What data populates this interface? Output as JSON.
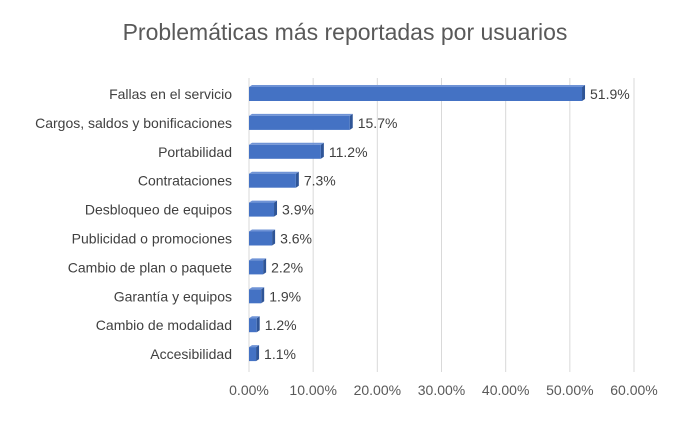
{
  "chart_data": {
    "type": "bar",
    "orientation": "horizontal",
    "title": "Problemáticas más reportadas por usuarios",
    "xlabel": "",
    "ylabel": "",
    "categories": [
      "Fallas en el servicio",
      "Cargos, saldos y bonificaciones",
      "Portabilidad",
      "Contrataciones",
      "Desbloqueo de equipos",
      "Publicidad o promociones",
      "Cambio de plan o paquete",
      "Garantía y equipos",
      "Cambio de modalidad",
      "Accesibilidad"
    ],
    "values": [
      51.9,
      15.7,
      11.2,
      7.3,
      3.9,
      3.6,
      2.2,
      1.9,
      1.2,
      1.1
    ],
    "value_labels": [
      "51.9%",
      "15.7%",
      "11.2%",
      "7.3%",
      "3.9%",
      "3.6%",
      "2.2%",
      "1.9%",
      "1.2%",
      "1.1%"
    ],
    "xlim": [
      0,
      60
    ],
    "xticks": [
      0,
      10,
      20,
      30,
      40,
      50,
      60
    ],
    "xtick_labels": [
      "0.00%",
      "10.00%",
      "20.00%",
      "30.00%",
      "40.00%",
      "50.00%",
      "60.00%"
    ],
    "grid": true,
    "legend": "none",
    "bar_color": "#4472c4",
    "bar_edge_color": "#2f5597"
  }
}
